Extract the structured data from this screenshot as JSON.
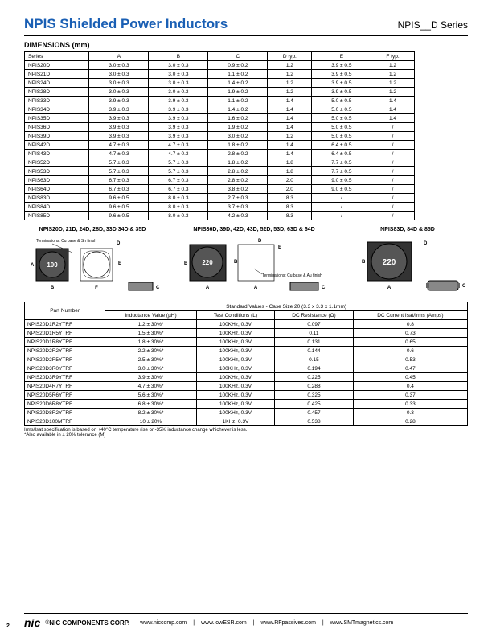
{
  "header": {
    "title": "NPIS Shielded Power Inductors",
    "series": "NPIS__D Series"
  },
  "dimensions": {
    "title": "DIMENSIONS (mm)",
    "columns": [
      "Series",
      "A",
      "B",
      "C",
      "D typ.",
      "E",
      "F typ."
    ],
    "rows": [
      [
        "NPIS20D",
        "3.0 ± 0.3",
        "3.0 ± 0.3",
        "0.9 ± 0.2",
        "1.2",
        "3.9 ± 0.5",
        "1.2"
      ],
      [
        "NPIS21D",
        "3.0 ± 0.3",
        "3.0 ± 0.3",
        "1.1 ± 0.2",
        "1.2",
        "3.9 ± 0.5",
        "1.2"
      ],
      [
        "NPIS24D",
        "3.0 ± 0.3",
        "3.0 ± 0.3",
        "1.4 ± 0.2",
        "1.2",
        "3.9 ± 0.5",
        "1.2"
      ],
      [
        "NPIS28D",
        "3.0 ± 0.3",
        "3.0 ± 0.3",
        "1.9 ± 0.2",
        "1.2",
        "3.9 ± 0.5",
        "1.2"
      ],
      [
        "NPIS33D",
        "3.9 ± 0.3",
        "3.9 ± 0.3",
        "1.1 ± 0.2",
        "1.4",
        "5.0 ± 0.5",
        "1.4"
      ],
      [
        "NPIS34D",
        "3.9 ± 0.3",
        "3.9 ± 0.3",
        "1.4 ± 0.2",
        "1.4",
        "5.0 ± 0.5",
        "1.4"
      ],
      [
        "NPIS35D",
        "3.9 ± 0.3",
        "3.9 ± 0.3",
        "1.6 ± 0.2",
        "1.4",
        "5.0 ± 0.5",
        "1.4"
      ],
      [
        "NPIS36D",
        "3.9 ± 0.3",
        "3.9 ± 0.3",
        "1.9 ± 0.2",
        "1.4",
        "5.0 ± 0.5",
        "/"
      ],
      [
        "NPIS39D",
        "3.9 ± 0.3",
        "3.9 ± 0.3",
        "3.0 ± 0.2",
        "1.2",
        "5.0 ± 0.5",
        "/"
      ],
      [
        "NPIS42D",
        "4.7 ± 0.3",
        "4.7 ± 0.3",
        "1.8 ± 0.2",
        "1.4",
        "6.4 ± 0.5",
        "/"
      ],
      [
        "NPIS43D",
        "4.7 ± 0.3",
        "4.7 ± 0.3",
        "2.8 ± 0.2",
        "1.4",
        "6.4 ± 0.5",
        "/"
      ],
      [
        "NPIS52D",
        "5.7 ± 0.3",
        "5.7 ± 0.3",
        "1.8 ± 0.2",
        "1.8",
        "7.7 ± 0.5",
        "/"
      ],
      [
        "NPIS53D",
        "5.7 ± 0.3",
        "5.7 ± 0.3",
        "2.8 ± 0.2",
        "1.8",
        "7.7 ± 0.5",
        "/"
      ],
      [
        "NPIS63D",
        "6.7 ± 0.3",
        "6.7 ± 0.3",
        "2.8 ± 0.2",
        "2.0",
        "9.0 ± 0.5",
        "/"
      ],
      [
        "NPIS64D",
        "6.7 ± 0.3",
        "6.7 ± 0.3",
        "3.8 ± 0.2",
        "2.0",
        "9.0 ± 0.5",
        "/"
      ],
      [
        "NPIS83D",
        "9.6 ± 0.5",
        "8.0 ± 0.3",
        "2.7 ± 0.3",
        "8.3",
        "/",
        "/"
      ],
      [
        "NPIS84D",
        "9.6 ± 0.5",
        "8.0 ± 0.3",
        "3.7 ± 0.3",
        "8.3",
        "/",
        "/"
      ],
      [
        "NPIS85D",
        "9.6 ± 0.5",
        "8.0 ± 0.3",
        "4.2 ± 0.3",
        "8.3",
        "/",
        "/"
      ]
    ]
  },
  "diagrams": {
    "group1": "NPIS20D, 21D, 24D, 28D, 33D 34D & 35D",
    "group1_term": "Terminations: Cu base & Sn finish",
    "group2": "NPIS36D, 39D, 42D, 43D, 52D, 53D, 63D & 64D",
    "group2_term": "Terminations: Cu base & Au finish",
    "group3": "NPIS83D, 84D & 85D",
    "label_100": "100",
    "label_220": "220"
  },
  "values": {
    "header": "Standard Values - Case Size 20 (3.3 x 3.3 x 1.1mm)",
    "part_col": "Part Number",
    "cols": [
      "Inductance Value (µH)",
      "Test Conditions (L)",
      "DC Resistance (Ω)",
      "DC Current Isat/Irms (Amps)"
    ],
    "rows": [
      [
        "NPIS20D1R2YTRF",
        "1.2 ± 30%*",
        "100KHz, 0.3V",
        "0.097",
        "0.8"
      ],
      [
        "NPIS20D1R5YTRF",
        "1.5 ± 30%*",
        "100KHz, 0.3V",
        "0.11",
        "0.73"
      ],
      [
        "NPIS20D1R8YTRF",
        "1.8 ± 30%*",
        "100KHz, 0.3V",
        "0.131",
        "0.65"
      ],
      [
        "NPIS20D2R2YTRF",
        "2.2 ± 30%*",
        "100KHz, 0.3V",
        "0.144",
        "0.6"
      ],
      [
        "NPIS20D2R5YTRF",
        "2.5 ± 30%*",
        "100KHz, 0.3V",
        "0.15",
        "0.53"
      ],
      [
        "NPIS20D3R0YTRF",
        "3.0 ± 30%*",
        "100KHz, 0.3V",
        "0.194",
        "0.47"
      ],
      [
        "NPIS20D3R9YTRF",
        "3.9 ± 30%*",
        "100KHz, 0.3V",
        "0.225",
        "0.45"
      ],
      [
        "NPIS20D4R7YTRF",
        "4.7 ± 30%*",
        "100KHz, 0.3V",
        "0.288",
        "0.4"
      ],
      [
        "NPIS20D5R6YTRF",
        "5.6 ± 30%*",
        "100KHz, 0.3V",
        "0.325",
        "0.37"
      ],
      [
        "NPIS20D6R8YTRF",
        "6.8 ± 30%*",
        "100KHz, 0.3V",
        "0.425",
        "0.33"
      ],
      [
        "NPIS20D8R2YTRF",
        "8.2 ± 30%*",
        "100KHz, 0.3V",
        "0.457",
        "0.3"
      ],
      [
        "NPIS20D100MTRF",
        "10 ± 20%",
        "1KHz, 0.3V",
        "0.538",
        "0.28"
      ]
    ]
  },
  "footnote": "Irms/Isat specification is based on +40°C temperature rise or -35% inductance change whichever is less.\n*Also available in ± 20% tolerance (M)",
  "footer": {
    "logo": "nic",
    "corp": "NIC COMPONENTS CORP.",
    "links": [
      "www.niccomp.com",
      "www.lowESR.com",
      "www.RFpassives.com",
      "www.SMTmagnetics.com"
    ]
  },
  "page": "2"
}
